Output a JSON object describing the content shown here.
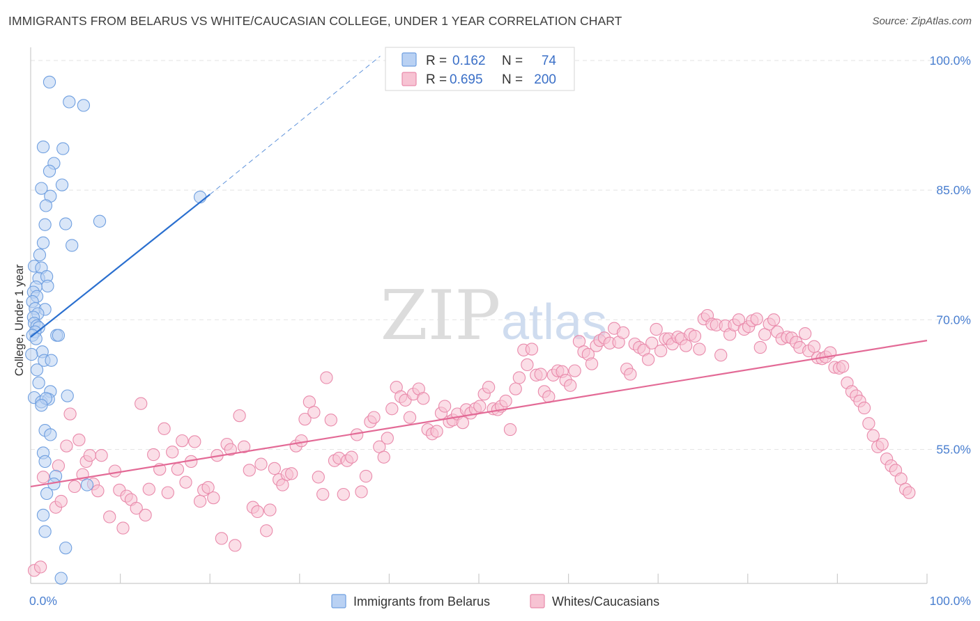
{
  "title": "IMMIGRANTS FROM BELARUS VS WHITE/CAUCASIAN COLLEGE, UNDER 1 YEAR CORRELATION CHART",
  "source": "Source: ZipAtlas.com",
  "watermark": {
    "zip": "ZIP",
    "atlas": "atlas"
  },
  "colors": {
    "blue": "#6f9fe0",
    "blue_fill": "#b9d1f3",
    "blue_line": "#2a6fcf",
    "pink": "#e98aab",
    "pink_fill": "#f7c3d3",
    "pink_line": "#e36a96",
    "tick_text": "#4a7fd0",
    "grid": "#e4e4e4"
  },
  "legend_stats": [
    {
      "r_label": "R =",
      "r_value": "0.162",
      "n_label": "N =",
      "n_value": "74",
      "color": "blue"
    },
    {
      "r_label": "R =",
      "r_value": "0.695",
      "n_label": "N =",
      "n_value": "200",
      "color": "pink"
    }
  ],
  "bottom_legend": [
    {
      "label": "Immigrants from Belarus",
      "color": "blue"
    },
    {
      "label": "Whites/Caucasians",
      "color": "pink"
    }
  ],
  "chart_data": {
    "type": "scatter",
    "title": "IMMIGRANTS FROM BELARUS VS WHITE/CAUCASIAN COLLEGE, UNDER 1 YEAR CORRELATION CHART",
    "xlabel": "",
    "ylabel": "College, Under 1 year",
    "xlim": [
      0,
      100
    ],
    "ylim": [
      39.5,
      102
    ],
    "x_tick_labels": [
      {
        "value": 0,
        "label": "0.0%"
      },
      {
        "value": 100,
        "label": "100.0%"
      }
    ],
    "y_tick_labels": [
      {
        "value": 55,
        "label": "55.0%"
      },
      {
        "value": 70,
        "label": "70.0%"
      },
      {
        "value": 85,
        "label": "85.0%"
      },
      {
        "value": 100,
        "label": "100.0%"
      }
    ],
    "grid": true,
    "legend_position": "top-center",
    "series": [
      {
        "name": "Immigrants from Belarus",
        "color": "blue",
        "R": 0.162,
        "N": 74,
        "trend": {
          "x0": 0,
          "y0": 68.0,
          "x1": 20,
          "y1": 84.5,
          "dash_to_x": 39,
          "dash_to_y": 100.5
        },
        "points": [
          [
            2.1,
            97.5
          ],
          [
            4.3,
            95.2
          ],
          [
            5.9,
            94.8
          ],
          [
            1.4,
            90.0
          ],
          [
            3.6,
            89.8
          ],
          [
            2.6,
            88.1
          ],
          [
            2.1,
            87.2
          ],
          [
            1.2,
            85.2
          ],
          [
            3.5,
            85.6
          ],
          [
            2.2,
            84.3
          ],
          [
            1.7,
            83.2
          ],
          [
            18.9,
            84.2
          ],
          [
            7.7,
            81.4
          ],
          [
            1.6,
            81.0
          ],
          [
            3.9,
            81.1
          ],
          [
            4.6,
            78.6
          ],
          [
            1.4,
            78.9
          ],
          [
            1.0,
            77.5
          ],
          [
            0.4,
            76.2
          ],
          [
            1.2,
            76.0
          ],
          [
            0.9,
            74.8
          ],
          [
            1.8,
            75.0
          ],
          [
            1.9,
            73.9
          ],
          [
            0.6,
            73.8
          ],
          [
            0.3,
            73.2
          ],
          [
            0.7,
            72.7
          ],
          [
            0.2,
            72.1
          ],
          [
            0.5,
            71.3
          ],
          [
            1.6,
            71.2
          ],
          [
            0.8,
            70.7
          ],
          [
            0.3,
            70.3
          ],
          [
            0.4,
            69.6
          ],
          [
            0.7,
            69.3
          ],
          [
            0.9,
            69.1
          ],
          [
            0.5,
            68.6
          ],
          [
            0.2,
            68.2
          ],
          [
            0.6,
            67.8
          ],
          [
            2.9,
            68.2
          ],
          [
            3.1,
            68.2
          ],
          [
            1.3,
            66.3
          ],
          [
            0.1,
            66.0
          ],
          [
            1.5,
            65.3
          ],
          [
            2.3,
            65.3
          ],
          [
            0.7,
            64.2
          ],
          [
            0.9,
            62.7
          ],
          [
            0.4,
            61.0
          ],
          [
            2.2,
            61.7
          ],
          [
            4.1,
            61.2
          ],
          [
            1.2,
            60.5
          ],
          [
            2.0,
            60.8
          ],
          [
            1.7,
            60.9
          ],
          [
            1.2,
            60.1
          ],
          [
            1.6,
            57.2
          ],
          [
            2.2,
            56.7
          ],
          [
            1.4,
            54.6
          ],
          [
            1.6,
            53.6
          ],
          [
            2.8,
            51.9
          ],
          [
            6.3,
            50.9
          ],
          [
            2.6,
            51.0
          ],
          [
            1.8,
            49.9
          ],
          [
            1.4,
            47.4
          ],
          [
            1.6,
            45.5
          ],
          [
            3.9,
            43.6
          ],
          [
            3.4,
            40.1
          ]
        ]
      },
      {
        "name": "Whites/Caucasians",
        "color": "pink",
        "R": 0.695,
        "N": 200,
        "trend": {
          "x0": 0,
          "y0": 50.7,
          "x1": 100,
          "y1": 67.6
        },
        "points": [
          [
            0.4,
            41.0
          ],
          [
            1.1,
            41.4
          ],
          [
            1.4,
            51.8
          ],
          [
            2.8,
            48.3
          ],
          [
            3.1,
            53.1
          ],
          [
            3.4,
            49.0
          ],
          [
            4.0,
            55.4
          ],
          [
            4.4,
            59.1
          ],
          [
            4.9,
            50.7
          ],
          [
            5.4,
            56.1
          ],
          [
            5.8,
            52.1
          ],
          [
            6.2,
            53.6
          ],
          [
            6.6,
            54.3
          ],
          [
            7.0,
            51.0
          ],
          [
            7.5,
            50.2
          ],
          [
            7.9,
            54.3
          ],
          [
            8.8,
            47.2
          ],
          [
            9.4,
            52.5
          ],
          [
            9.9,
            50.3
          ],
          [
            10.3,
            45.9
          ],
          [
            10.7,
            49.6
          ],
          [
            11.2,
            49.2
          ],
          [
            11.8,
            48.2
          ],
          [
            12.3,
            60.3
          ],
          [
            12.8,
            47.4
          ],
          [
            13.2,
            50.4
          ],
          [
            13.7,
            54.4
          ],
          [
            14.4,
            52.7
          ],
          [
            14.9,
            57.4
          ],
          [
            15.3,
            50.0
          ],
          [
            15.8,
            54.7
          ],
          [
            16.4,
            52.7
          ],
          [
            16.9,
            56.0
          ],
          [
            17.3,
            51.2
          ],
          [
            17.9,
            53.6
          ],
          [
            18.3,
            55.9
          ],
          [
            18.9,
            49.0
          ],
          [
            19.3,
            50.3
          ],
          [
            19.8,
            50.6
          ],
          [
            20.4,
            49.4
          ],
          [
            20.8,
            54.3
          ],
          [
            21.3,
            44.7
          ],
          [
            21.9,
            55.6
          ],
          [
            22.3,
            55.0
          ],
          [
            22.8,
            43.9
          ],
          [
            23.3,
            58.9
          ],
          [
            23.8,
            55.3
          ],
          [
            24.4,
            52.6
          ],
          [
            24.8,
            48.3
          ],
          [
            25.3,
            47.8
          ],
          [
            25.7,
            53.3
          ],
          [
            26.3,
            45.6
          ],
          [
            26.7,
            48.0
          ],
          [
            27.2,
            52.8
          ],
          [
            27.7,
            51.5
          ],
          [
            28.1,
            50.9
          ],
          [
            28.6,
            52.1
          ],
          [
            29.1,
            52.2
          ],
          [
            29.6,
            55.4
          ],
          [
            30.2,
            56.0
          ],
          [
            30.6,
            58.5
          ],
          [
            31.1,
            60.5
          ],
          [
            31.6,
            59.3
          ],
          [
            32.1,
            51.8
          ],
          [
            32.6,
            49.8
          ],
          [
            33.0,
            63.3
          ],
          [
            33.5,
            58.4
          ],
          [
            33.9,
            53.7
          ],
          [
            34.4,
            54.0
          ],
          [
            34.9,
            49.8
          ],
          [
            35.3,
            53.7
          ],
          [
            35.8,
            54.1
          ],
          [
            36.4,
            56.7
          ],
          [
            36.9,
            50.1
          ],
          [
            37.4,
            51.9
          ],
          [
            37.9,
            58.2
          ],
          [
            38.3,
            58.7
          ],
          [
            38.9,
            55.3
          ],
          [
            39.4,
            54.1
          ],
          [
            39.8,
            56.3
          ],
          [
            40.3,
            59.7
          ],
          [
            40.8,
            62.2
          ],
          [
            41.3,
            61.1
          ],
          [
            41.8,
            60.7
          ],
          [
            42.3,
            58.7
          ],
          [
            42.7,
            61.4
          ],
          [
            43.3,
            62.0
          ],
          [
            43.8,
            60.9
          ],
          [
            44.3,
            57.3
          ],
          [
            44.8,
            56.8
          ],
          [
            45.3,
            57.1
          ],
          [
            45.8,
            59.2
          ],
          [
            46.2,
            60.0
          ],
          [
            46.7,
            58.2
          ],
          [
            47.1,
            58.4
          ],
          [
            47.6,
            59.1
          ],
          [
            48.2,
            58.1
          ],
          [
            48.6,
            59.6
          ],
          [
            49.1,
            59.2
          ],
          [
            49.6,
            59.7
          ],
          [
            50.1,
            60.0
          ],
          [
            50.6,
            61.4
          ],
          [
            51.1,
            62.2
          ],
          [
            51.6,
            59.7
          ],
          [
            52.1,
            59.6
          ],
          [
            52.5,
            60.0
          ],
          [
            53.0,
            60.6
          ],
          [
            53.5,
            57.3
          ],
          [
            54.1,
            62.0
          ],
          [
            54.5,
            63.3
          ],
          [
            55.0,
            66.5
          ],
          [
            55.4,
            64.8
          ],
          [
            55.9,
            66.6
          ],
          [
            56.4,
            63.6
          ],
          [
            56.9,
            63.7
          ],
          [
            57.3,
            61.7
          ],
          [
            57.8,
            61.1
          ],
          [
            58.3,
            63.6
          ],
          [
            58.8,
            64.1
          ],
          [
            59.3,
            64.0
          ],
          [
            59.7,
            63.0
          ],
          [
            60.2,
            62.4
          ],
          [
            60.7,
            64.1
          ],
          [
            61.2,
            67.5
          ],
          [
            61.7,
            66.3
          ],
          [
            62.2,
            66.0
          ],
          [
            62.6,
            64.9
          ],
          [
            63.1,
            67.0
          ],
          [
            63.5,
            67.6
          ],
          [
            64.0,
            67.9
          ],
          [
            64.6,
            67.3
          ],
          [
            65.1,
            69.0
          ],
          [
            65.6,
            67.4
          ],
          [
            66.1,
            68.5
          ],
          [
            66.5,
            64.3
          ],
          [
            66.9,
            63.7
          ],
          [
            67.4,
            67.2
          ],
          [
            67.9,
            66.8
          ],
          [
            68.4,
            66.5
          ],
          [
            68.9,
            65.4
          ],
          [
            69.3,
            67.3
          ],
          [
            69.8,
            68.9
          ],
          [
            70.3,
            66.4
          ],
          [
            70.8,
            67.8
          ],
          [
            71.2,
            67.8
          ],
          [
            71.6,
            67.2
          ],
          [
            72.2,
            68.0
          ],
          [
            72.6,
            67.8
          ],
          [
            73.1,
            67.0
          ],
          [
            73.6,
            68.3
          ],
          [
            74.1,
            68.1
          ],
          [
            74.6,
            66.6
          ],
          [
            75.1,
            70.1
          ],
          [
            75.5,
            70.5
          ],
          [
            76.0,
            69.5
          ],
          [
            76.5,
            69.4
          ],
          [
            77.0,
            65.9
          ],
          [
            77.5,
            69.3
          ],
          [
            78.0,
            68.3
          ],
          [
            78.5,
            69.4
          ],
          [
            79.0,
            70.0
          ],
          [
            79.6,
            68.9
          ],
          [
            80.1,
            69.2
          ],
          [
            80.5,
            69.9
          ],
          [
            81.0,
            70.1
          ],
          [
            81.4,
            66.8
          ],
          [
            81.9,
            68.3
          ],
          [
            82.4,
            69.5
          ],
          [
            82.9,
            70.0
          ],
          [
            83.3,
            68.6
          ],
          [
            83.8,
            67.8
          ],
          [
            84.4,
            68.0
          ],
          [
            84.9,
            67.9
          ],
          [
            85.4,
            67.4
          ],
          [
            85.8,
            66.8
          ],
          [
            86.4,
            68.4
          ],
          [
            86.8,
            66.4
          ],
          [
            87.4,
            66.9
          ],
          [
            87.8,
            65.6
          ],
          [
            88.3,
            65.5
          ],
          [
            88.7,
            65.7
          ],
          [
            89.2,
            66.2
          ],
          [
            89.7,
            64.5
          ],
          [
            90.2,
            64.4
          ],
          [
            90.6,
            64.6
          ],
          [
            91.1,
            62.7
          ],
          [
            91.6,
            61.7
          ],
          [
            92.1,
            61.2
          ],
          [
            92.5,
            60.6
          ],
          [
            93.0,
            59.8
          ],
          [
            93.5,
            58.0
          ],
          [
            94.0,
            56.6
          ],
          [
            94.5,
            55.3
          ],
          [
            95.0,
            55.6
          ],
          [
            95.5,
            53.9
          ],
          [
            96.0,
            53.1
          ],
          [
            96.5,
            52.6
          ],
          [
            97.1,
            51.6
          ],
          [
            97.6,
            50.4
          ],
          [
            98.0,
            50.0
          ]
        ]
      }
    ]
  }
}
